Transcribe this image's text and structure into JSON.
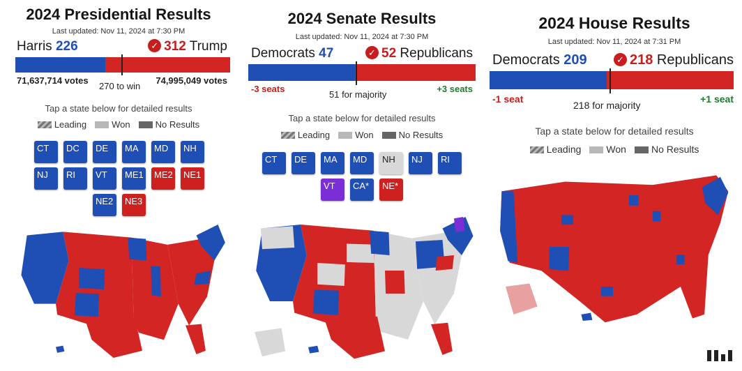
{
  "presidential": {
    "title": "2024 Presidential Results",
    "updated": "Last updated: Nov 11, 2024 at 7:30 PM",
    "dem_name": "Harris",
    "dem_count": "226",
    "rep_count": "312",
    "rep_name": "Trump",
    "dem_votes": "71,637,714 votes",
    "rep_votes": "74,995,049 votes",
    "threshold": "270 to win",
    "dem_share": 0.42,
    "tap": "Tap a state below for detailed results",
    "legend": {
      "leading": "Leading",
      "won": "Won",
      "no_results": "No Results"
    },
    "chips": [
      {
        "label": "CT",
        "color": "blue"
      },
      {
        "label": "DC",
        "color": "blue"
      },
      {
        "label": "DE",
        "color": "blue"
      },
      {
        "label": "MA",
        "color": "blue"
      },
      {
        "label": "MD",
        "color": "blue"
      },
      {
        "label": "NH",
        "color": "blue"
      },
      {
        "label": "NJ",
        "color": "blue"
      },
      {
        "label": "RI",
        "color": "blue"
      },
      {
        "label": "VT",
        "color": "blue"
      },
      {
        "label": "ME1",
        "color": "blue"
      },
      {
        "label": "ME2",
        "color": "red"
      },
      {
        "label": "NE1",
        "color": "red"
      },
      {
        "label": "NE2",
        "color": "blue"
      },
      {
        "label": "NE3",
        "color": "red"
      }
    ]
  },
  "senate": {
    "title": "2024 Senate Results",
    "updated": "Last updated: Nov 11, 2024 at 7:30 PM",
    "dem_name": "Democrats",
    "dem_count": "47",
    "rep_count": "52",
    "rep_name": "Republicans",
    "dem_change": "-3 seats",
    "rep_change": "+3 seats",
    "threshold": "51 for majority",
    "dem_share": 0.47,
    "tap": "Tap a state below for detailed results",
    "legend": {
      "leading": "Leading",
      "won": "Won",
      "no_results": "No Results"
    },
    "chips": [
      {
        "label": "CT",
        "color": "blue"
      },
      {
        "label": "DE",
        "color": "blue"
      },
      {
        "label": "MA",
        "color": "blue"
      },
      {
        "label": "MD",
        "color": "blue"
      },
      {
        "label": "NH",
        "color": "gray"
      },
      {
        "label": "NJ",
        "color": "blue"
      },
      {
        "label": "RI",
        "color": "blue"
      },
      {
        "label": "VT",
        "color": "purple"
      },
      {
        "label": "CA*",
        "color": "blue"
      },
      {
        "label": "NE*",
        "color": "red"
      }
    ]
  },
  "house": {
    "title": "2024 House Results",
    "updated": "Last updated: Nov 11, 2024 at 7:31 PM",
    "dem_name": "Democrats",
    "dem_count": "209",
    "rep_count": "218",
    "rep_name": "Republicans",
    "dem_change": "-1 seat",
    "rep_change": "+1 seat",
    "threshold": "218 for majority",
    "dem_share": 0.48,
    "tap": "Tap a state below for detailed results",
    "legend": {
      "leading": "Leading",
      "won": "Won",
      "no_results": "No Results"
    }
  },
  "colors": {
    "dem": "#1f4fb4",
    "rep": "#d42525",
    "purple": "#7c2ed6",
    "won_gray": "#b8b8b8",
    "no_results": "#666666"
  }
}
